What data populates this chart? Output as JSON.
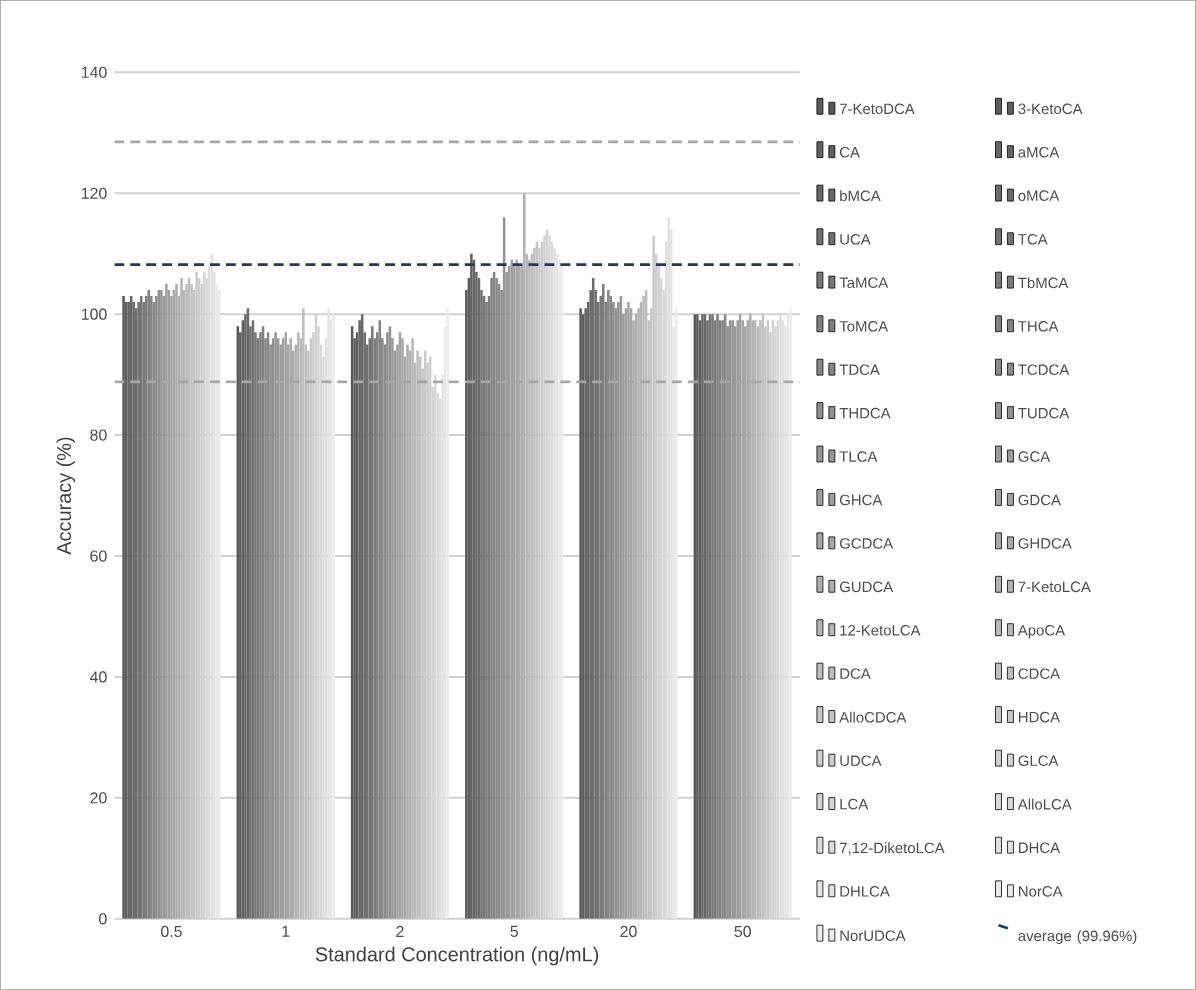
{
  "chart_data": {
    "type": "bar",
    "xlabel": "Standard Concentration (ng/mL)",
    "ylabel": "Accuracy (%)",
    "categories": [
      "0.5",
      "1",
      "2",
      "5",
      "20",
      "50"
    ],
    "ylim": [
      0,
      140
    ],
    "yticks": [
      0,
      20,
      40,
      60,
      80,
      100,
      120,
      140
    ],
    "grid": "y",
    "legend": "right",
    "series": [
      {
        "name": "7-KetoDCA",
        "color": "#595959",
        "values": [
          103,
          98,
          98,
          104,
          101,
          100
        ]
      },
      {
        "name": "3-KetoCA",
        "color": "#5d5d5d",
        "values": [
          102,
          97,
          96,
          106,
          100,
          100
        ]
      },
      {
        "name": "CA",
        "color": "#616161",
        "values": [
          102,
          99,
          97,
          110,
          101,
          99
        ]
      },
      {
        "name": "aMCA",
        "color": "#656565",
        "values": [
          103,
          100,
          99,
          109,
          102,
          100
        ]
      },
      {
        "name": "bMCA",
        "color": "#686868",
        "values": [
          102,
          101,
          100,
          107,
          104,
          100
        ]
      },
      {
        "name": "oMCA",
        "color": "#6c6c6c",
        "values": [
          101,
          98,
          97,
          106,
          106,
          99
        ]
      },
      {
        "name": "UCA",
        "color": "#707070",
        "values": [
          102,
          99,
          95,
          104,
          104,
          100
        ]
      },
      {
        "name": "TCA",
        "color": "#747474",
        "values": [
          103,
          97,
          96,
          103,
          102,
          100
        ]
      },
      {
        "name": "TaMCA",
        "color": "#787878",
        "values": [
          102,
          96,
          98,
          102,
          103,
          99
        ]
      },
      {
        "name": "TbMCA",
        "color": "#7c7c7c",
        "values": [
          103,
          97,
          96,
          103,
          105,
          100
        ]
      },
      {
        "name": "ToMCA",
        "color": "#808080",
        "values": [
          104,
          98,
          97,
          106,
          102,
          99
        ]
      },
      {
        "name": "THCA",
        "color": "#848484",
        "values": [
          103,
          96,
          99,
          107,
          104,
          99
        ]
      },
      {
        "name": "TDCA",
        "color": "#878787",
        "values": [
          102,
          97,
          96,
          106,
          103,
          100
        ]
      },
      {
        "name": "TCDCA",
        "color": "#8b8b8b",
        "values": [
          103,
          95,
          95,
          105,
          102,
          98
        ]
      },
      {
        "name": "THDCA",
        "color": "#8f8f8f",
        "values": [
          104,
          96,
          97,
          104,
          101,
          99
        ]
      },
      {
        "name": "TUDCA",
        "color": "#939393",
        "values": [
          104,
          97,
          98,
          116,
          102,
          99
        ]
      },
      {
        "name": "TLCA",
        "color": "#979797",
        "values": [
          103,
          96,
          96,
          107,
          103,
          98
        ]
      },
      {
        "name": "GCA",
        "color": "#9b9b9b",
        "values": [
          105,
          95,
          94,
          108,
          100,
          99
        ]
      },
      {
        "name": "GHCA",
        "color": "#9f9f9f",
        "values": [
          104,
          96,
          95,
          109,
          101,
          100
        ]
      },
      {
        "name": "GDCA",
        "color": "#a3a3a3",
        "values": [
          103,
          97,
          97,
          108,
          102,
          99
        ]
      },
      {
        "name": "GCDCA",
        "color": "#a6a6a6",
        "values": [
          104,
          95,
          96,
          109,
          101,
          98
        ]
      },
      {
        "name": "GHDCA",
        "color": "#aaaaaa",
        "values": [
          105,
          96,
          93,
          108,
          99,
          99
        ]
      },
      {
        "name": "GUDCA",
        "color": "#aeaeae",
        "values": [
          103,
          94,
          95,
          108,
          100,
          100
        ]
      },
      {
        "name": "7-KetoLCA",
        "color": "#b2b2b2",
        "values": [
          106,
          95,
          94,
          120,
          101,
          99
        ]
      },
      {
        "name": "12-KetoLCA",
        "color": "#b6b6b6",
        "values": [
          104,
          97,
          96,
          110,
          102,
          99
        ]
      },
      {
        "name": "ApoCA",
        "color": "#bababa",
        "values": [
          105,
          96,
          92,
          109,
          103,
          98
        ]
      },
      {
        "name": "DCA",
        "color": "#bebebe",
        "values": [
          106,
          101,
          94,
          110,
          104,
          99
        ]
      },
      {
        "name": "CDCA",
        "color": "#c1c1c1",
        "values": [
          105,
          95,
          93,
          111,
          99,
          100
        ]
      },
      {
        "name": "AlloCDCA",
        "color": "#c5c5c5",
        "values": [
          104,
          94,
          91,
          112,
          101,
          98
        ]
      },
      {
        "name": "HDCA",
        "color": "#c9c9c9",
        "values": [
          107,
          96,
          94,
          111,
          113,
          99
        ]
      },
      {
        "name": "UDCA",
        "color": "#cdcdcd",
        "values": [
          106,
          97,
          92,
          112,
          110,
          97
        ]
      },
      {
        "name": "GLCA",
        "color": "#d1d1d1",
        "values": [
          105,
          100,
          93,
          113,
          108,
          99
        ]
      },
      {
        "name": "LCA",
        "color": "#d5d5d5",
        "values": [
          107,
          98,
          88,
          114,
          106,
          98
        ]
      },
      {
        "name": "AlloLCA",
        "color": "#d9d9d9",
        "values": [
          106,
          95,
          90,
          113,
          104,
          99
        ]
      },
      {
        "name": "7,12-DiketoLCA",
        "color": "#dddddd",
        "values": [
          108,
          93,
          87,
          112,
          112,
          100
        ]
      },
      {
        "name": "DHCA",
        "color": "#e0e0e0",
        "values": [
          110,
          96,
          86,
          111,
          116,
          99
        ]
      },
      {
        "name": "DHLCA",
        "color": "#e4e4e4",
        "values": [
          107,
          101,
          90,
          110,
          114,
          98
        ]
      },
      {
        "name": "NorCA",
        "color": "#e8e8e8",
        "values": [
          105,
          99,
          98,
          109,
          98,
          100
        ]
      },
      {
        "name": "NorUDCA",
        "color": "#ececec",
        "values": [
          104,
          100,
          101,
          108,
          101,
          101
        ]
      }
    ],
    "ref_lines": [
      {
        "axis": "y",
        "value": 128.5,
        "color": "#a6a6a6",
        "line_style": "dashed"
      },
      {
        "axis": "y",
        "value": 108.2,
        "color": "#1f3864",
        "line_style": "dashed",
        "label": "average (99.96%)"
      },
      {
        "axis": "y",
        "value": 88.8,
        "color": "#a6a6a6",
        "line_style": "dashed"
      }
    ]
  }
}
